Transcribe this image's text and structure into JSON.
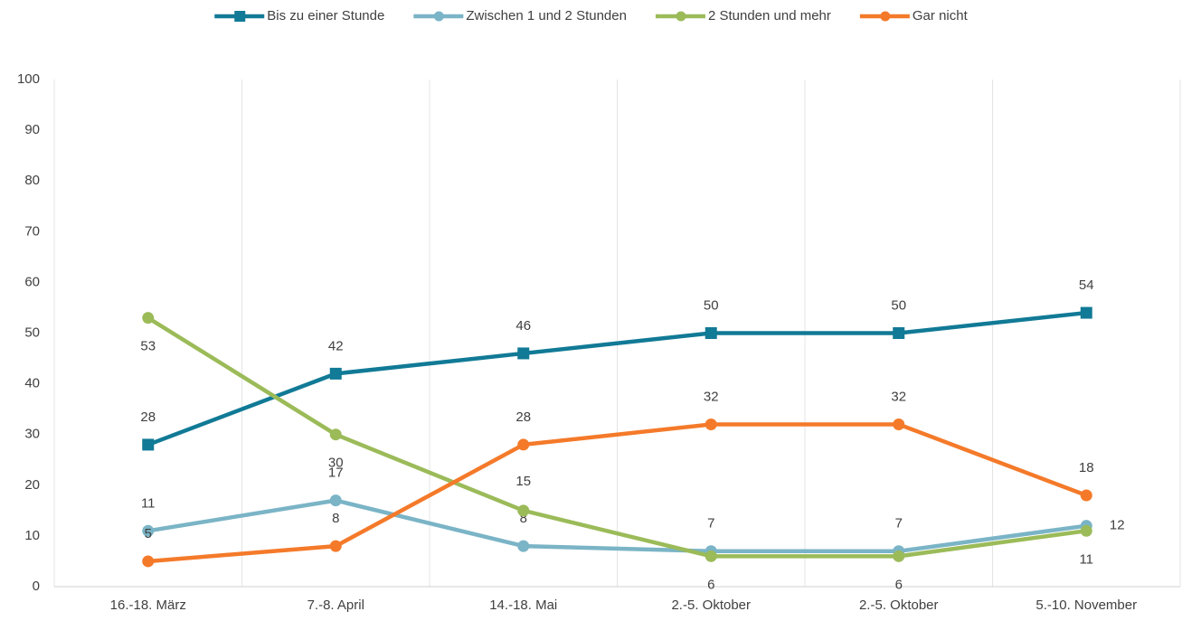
{
  "chart_data": {
    "type": "line",
    "categories": [
      "16.-18. März",
      "7.-8. April",
      "14.-18. Mai",
      "2.-5. Oktober",
      "2.-5. Oktober",
      "5.-10. November"
    ],
    "series": [
      {
        "name": "Bis zu einer Stunde",
        "color": "#117a96",
        "marker": "square",
        "values": [
          28,
          42,
          46,
          50,
          50,
          54
        ]
      },
      {
        "name": "Zwischen 1 und 2 Stunden",
        "color": "#7ab4c6",
        "marker": "circle",
        "values": [
          11,
          17,
          8,
          7,
          7,
          12
        ]
      },
      {
        "name": "2 Stunden und mehr",
        "color": "#9bbb59",
        "marker": "circle",
        "values": [
          53,
          30,
          15,
          6,
          6,
          11
        ]
      },
      {
        "name": "Gar nicht",
        "color": "#f47a2a",
        "marker": "circle",
        "values": [
          5,
          8,
          28,
          32,
          32,
          18
        ]
      }
    ],
    "ylim": [
      0,
      100
    ],
    "yticks": [
      0,
      10,
      20,
      30,
      40,
      50,
      60,
      70,
      80,
      90,
      100
    ],
    "grid": "vertical",
    "legend": "top"
  }
}
